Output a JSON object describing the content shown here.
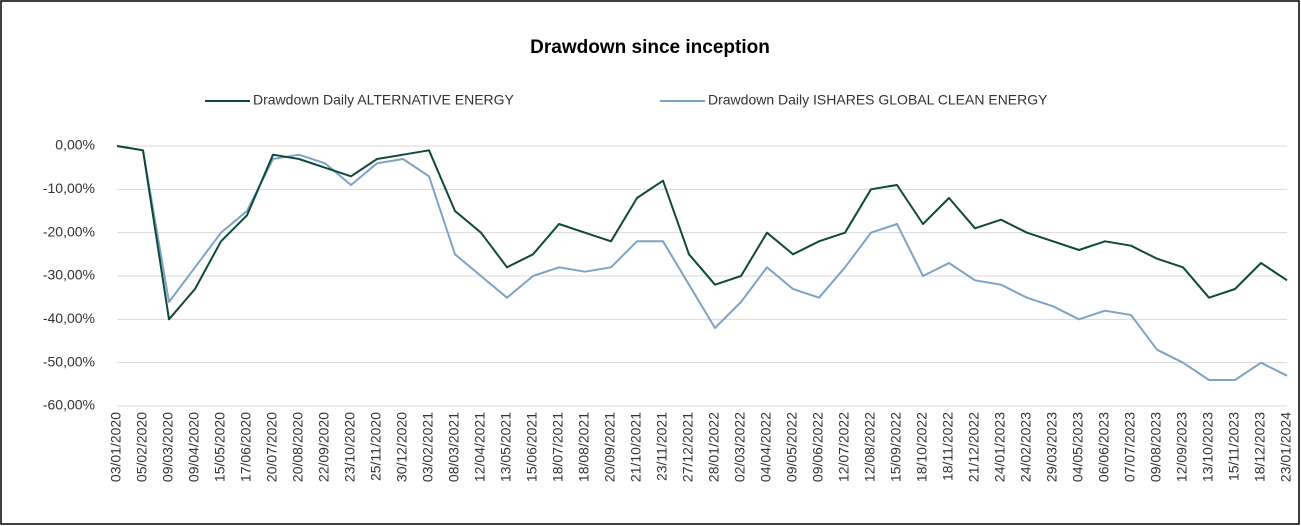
{
  "chart_data": {
    "type": "line",
    "title": "Drawdown since inception",
    "categories": [
      "03/01/2020",
      "05/02/2020",
      "09/03/2020",
      "09/04/2020",
      "15/05/2020",
      "17/06/2020",
      "20/07/2020",
      "20/08/2020",
      "22/09/2020",
      "23/10/2020",
      "25/11/2020",
      "30/12/2020",
      "03/02/2021",
      "08/03/2021",
      "12/04/2021",
      "13/05/2021",
      "15/06/2021",
      "18/07/2021",
      "18/08/2021",
      "20/09/2021",
      "21/10/2021",
      "23/11/2021",
      "27/12/2021",
      "28/01/2022",
      "02/03/2022",
      "04/04/2022",
      "09/05/2022",
      "09/06/2022",
      "12/07/2022",
      "12/08/2022",
      "15/09/2022",
      "18/10/2022",
      "18/11/2022",
      "21/12/2022",
      "24/01/2023",
      "24/02/2023",
      "29/03/2023",
      "04/05/2023",
      "06/06/2023",
      "07/07/2023",
      "09/08/2023",
      "12/09/2023",
      "13/10/2023",
      "15/11/2023",
      "18/12/2023",
      "23/01/2024"
    ],
    "series": [
      {
        "name": "Drawdown Daily ALTERNATIVE ENERGY",
        "color": "#0e4a3b",
        "values": [
          0,
          -1,
          -40,
          -33,
          -22,
          -16,
          -2,
          -3,
          -5,
          -7,
          -3,
          -2,
          -1,
          -15,
          -20,
          -28,
          -25,
          -18,
          -20,
          -22,
          -12,
          -8,
          -25,
          -32,
          -30,
          -20,
          -25,
          -22,
          -20,
          -10,
          -9,
          -18,
          -12,
          -19,
          -17,
          -20,
          -22,
          -24,
          -22,
          -23,
          -26,
          -28,
          -35,
          -33,
          -27,
          -31
        ]
      },
      {
        "name": "Drawdown Daily ISHARES GLOBAL CLEAN ENERGY",
        "color": "#7fa3c2",
        "values": [
          0,
          -1,
          -36,
          -28,
          -20,
          -15,
          -3,
          -2,
          -4,
          -9,
          -4,
          -3,
          -7,
          -25,
          -30,
          -35,
          -30,
          -28,
          -29,
          -28,
          -22,
          -22,
          -32,
          -42,
          -36,
          -28,
          -33,
          -35,
          -28,
          -20,
          -18,
          -30,
          -27,
          -31,
          -32,
          -35,
          -37,
          -40,
          -38,
          -39,
          -47,
          -50,
          -54,
          -54,
          -50,
          -53
        ]
      }
    ],
    "ylim": [
      -60,
      0
    ],
    "yticks": [
      {
        "value": 0,
        "label": "0,00%"
      },
      {
        "value": -10,
        "label": "-10,00%"
      },
      {
        "value": -20,
        "label": "-20,00%"
      },
      {
        "value": -30,
        "label": "-30,00%"
      },
      {
        "value": -40,
        "label": "-40,00%"
      },
      {
        "value": -50,
        "label": "-50,00%"
      },
      {
        "value": -60,
        "label": "-60,00%"
      }
    ],
    "grid": true
  }
}
